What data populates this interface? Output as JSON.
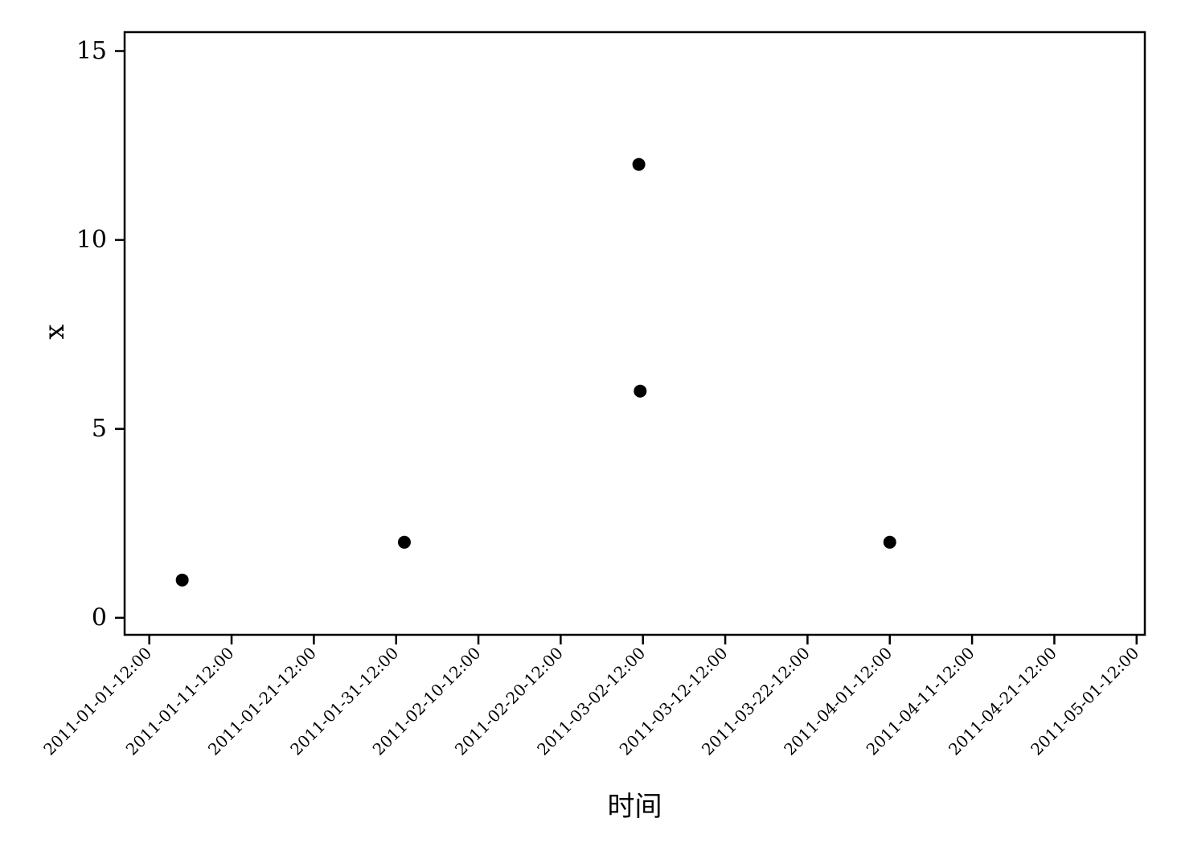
{
  "chart_data": {
    "type": "scatter",
    "title": "",
    "xlabel": "时间",
    "ylabel": "x",
    "x_axis_type": "date",
    "xlim": [
      "2010-12-29T12:00",
      "2011-05-02T12:00"
    ],
    "ylim": [
      -0.45,
      15.5
    ],
    "x_ticks": [
      "2011-01-01-12:00",
      "2011-01-11-12:00",
      "2011-01-21-12:00",
      "2011-01-31-12:00",
      "2011-02-10-12:00",
      "2011-02-20-12:00",
      "2011-03-02-12:00",
      "2011-03-12-12:00",
      "2011-03-22-12:00",
      "2011-04-01-12:00",
      "2011-04-11-12:00",
      "2011-04-21-12:00",
      "2011-05-01-12:00"
    ],
    "y_ticks": [
      0,
      5,
      10,
      15
    ],
    "grid": false,
    "legend": "none",
    "marker_color": "#000000",
    "series": [
      {
        "points": [
          {
            "x": "2011-01-05T12:00",
            "y": 1
          },
          {
            "x": "2011-02-01T12:00",
            "y": 2
          },
          {
            "x": "2011-03-02T00:00",
            "y": 12
          },
          {
            "x": "2011-03-02T04:00",
            "y": 6
          },
          {
            "x": "2011-04-01T12:00",
            "y": 2
          }
        ]
      }
    ]
  }
}
